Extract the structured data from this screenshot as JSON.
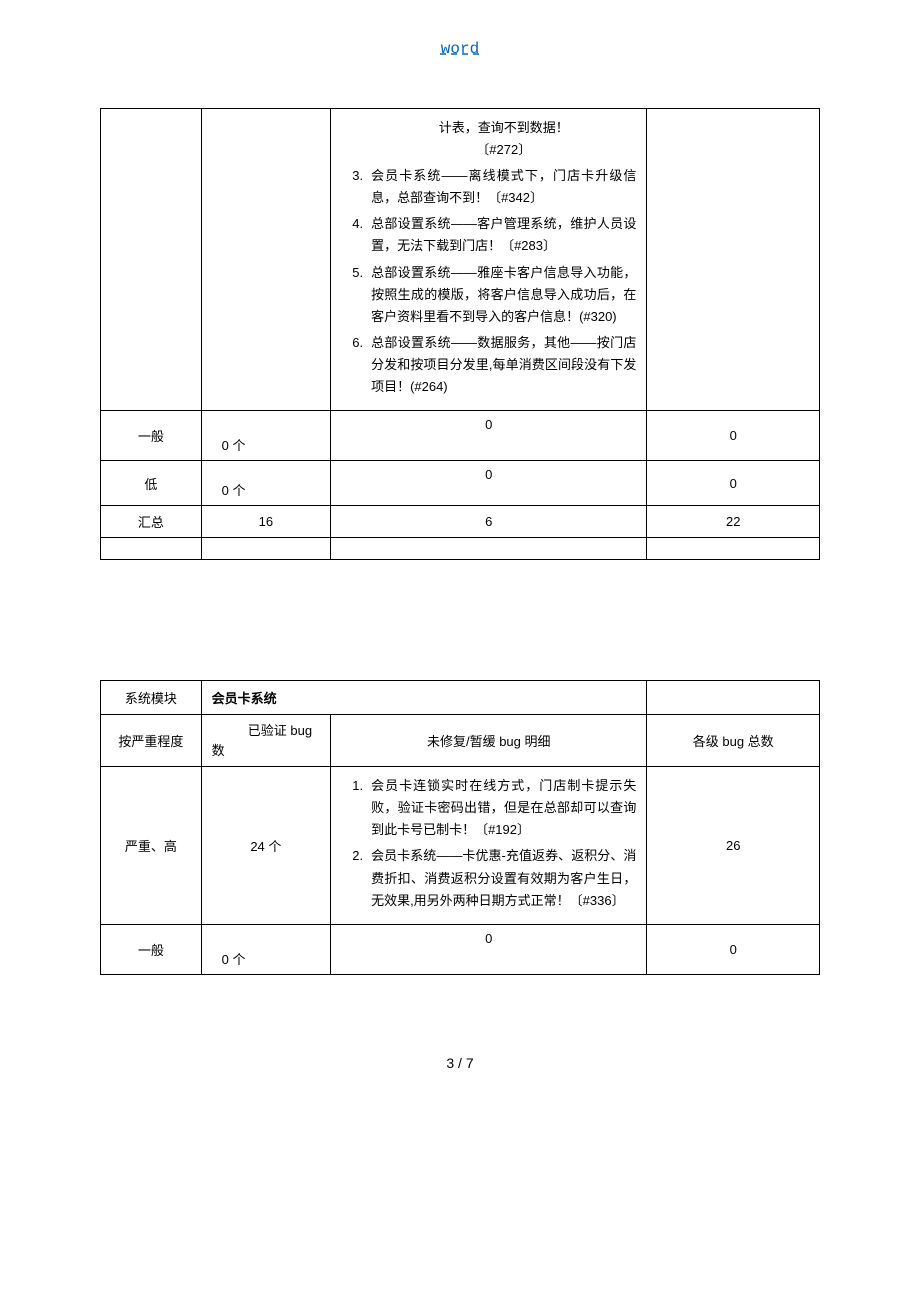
{
  "header": {
    "link_text": "word"
  },
  "table1": {
    "continuation_items": [
      {
        "num": "",
        "text_lines": [
          "计表，查询不到数据！",
          "〔#272〕"
        ],
        "center": true
      },
      {
        "num": "3.",
        "text_lines": [
          "会员卡系统——离线模式下，门店卡升级信息，总部查询不到！〔#342〕"
        ]
      },
      {
        "num": "4.",
        "text_lines": [
          "总部设置系统——客户管理系统，维护人员设置，无法下载到门店！〔#283〕"
        ]
      },
      {
        "num": "5.",
        "text_lines": [
          "总部设置系统——雅座卡客户信息导入功能，按照生成的模版，将客户信息导入成功后，在客户资料里看不到导入的客户信息！(#320)"
        ]
      },
      {
        "num": "6.",
        "text_lines": [
          "总部设置系统——数据服务，其他——按门店分发和按项目分发里,每单消费区间段没有下发项目！(#264)"
        ]
      }
    ],
    "rows": {
      "general": {
        "label": "一般",
        "verified": "0 个",
        "detail": "0",
        "total": "0"
      },
      "low": {
        "label": "低",
        "verified": "0 个",
        "detail": "0",
        "total": "0"
      },
      "summary": {
        "label": "汇总",
        "verified": "16",
        "detail": "6",
        "total": "22"
      }
    }
  },
  "table2": {
    "header": {
      "module_label": "系统模块",
      "module_value": "会员卡系统",
      "severity_label": "按严重程度",
      "verified_label_top": "已验证 bug",
      "verified_label_bot": "数",
      "detail_label": "未修复/暂缓 bug 明细",
      "total_label": "各级 bug 总数"
    },
    "rows": {
      "severe": {
        "label": "严重、高",
        "verified": "24 个",
        "total": "26",
        "items": [
          {
            "num": "1.",
            "text": "会员卡连锁实时在线方式，门店制卡提示失败，验证卡密码出错，但是在总部却可以查询到此卡号已制卡！〔#192〕"
          },
          {
            "num": "2.",
            "text": "会员卡系统——卡优惠-充值返券、返积分、消费折扣、消费返积分设置有效期为客户生日，无效果,用另外两种日期方式正常！〔#336〕"
          }
        ]
      },
      "general": {
        "label": "一般",
        "verified": "0 个",
        "detail": "0",
        "total": "0"
      }
    }
  },
  "footer": {
    "page": "3 / 7"
  }
}
